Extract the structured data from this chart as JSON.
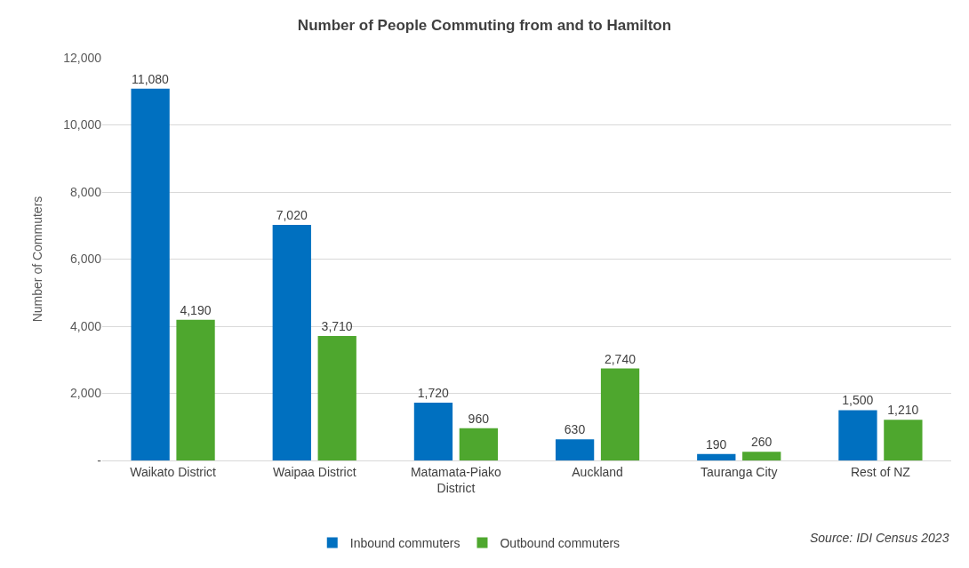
{
  "chart_data": {
    "type": "bar",
    "title": "Number of People Commuting from and to Hamilton",
    "ylabel": "Number of Commuters",
    "categories": [
      "Waikato District",
      "Waipaa District",
      "Matamata-Piako District",
      "Auckland",
      "Tauranga City",
      "Rest of NZ"
    ],
    "series": [
      {
        "name": "Inbound commuters",
        "color": "#0070c0",
        "values": [
          11080,
          7020,
          1720,
          630,
          190,
          1500
        ],
        "value_labels": [
          "11,080",
          "7,020",
          "1,720",
          "630",
          "190",
          "1,500"
        ]
      },
      {
        "name": "Outbound commuters",
        "color": "#4ea72e",
        "values": [
          4190,
          3710,
          960,
          2740,
          260,
          1210
        ],
        "value_labels": [
          "4,190",
          "3,710",
          "960",
          "2,740",
          "260",
          "1,210"
        ]
      }
    ],
    "ylim": [
      0,
      12000
    ],
    "yticks": [
      {
        "value": 0,
        "label": "-"
      },
      {
        "value": 2000,
        "label": "2,000"
      },
      {
        "value": 4000,
        "label": "4,000"
      },
      {
        "value": 6000,
        "label": "6,000"
      },
      {
        "value": 8000,
        "label": "8,000"
      },
      {
        "value": 10000,
        "label": "10,000"
      },
      {
        "value": 12000,
        "label": "12,000"
      }
    ],
    "grid": "y",
    "legend": "bottom",
    "annotations": [
      "Source: IDI Census 2023"
    ]
  }
}
